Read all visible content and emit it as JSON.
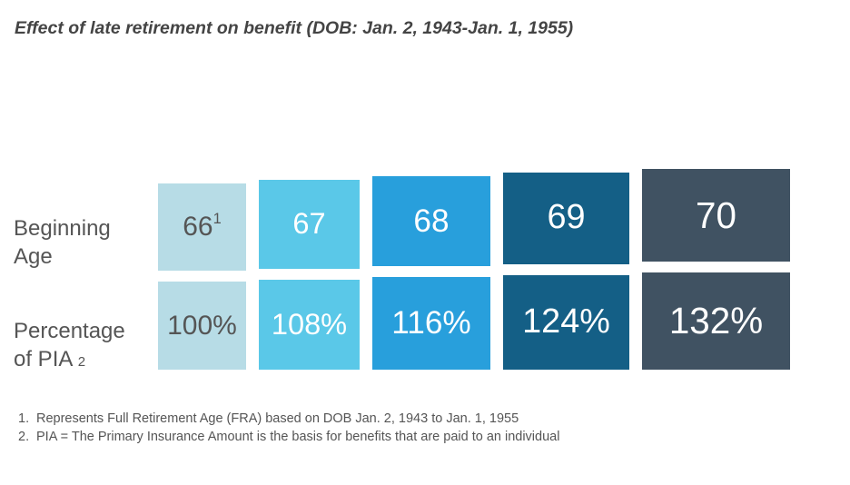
{
  "title": "Effect of late retirement on benefit (DOB: Jan. 2, 1943-Jan. 1, 1955)",
  "row_labels": {
    "age_line1": "Beginning",
    "age_line2": "Age",
    "pia_line1": "Percentage",
    "pia_line2": "of PIA",
    "pia_footnote": "2"
  },
  "footnotes": [
    {
      "num": "1.",
      "text": "Represents Full Retirement Age (FRA) based on DOB Jan. 2, 1943 to Jan. 1, 1955"
    },
    {
      "num": "2.",
      "text": "PIA = The Primary Insurance Amount is the basis for benefits that are paid to an individual"
    }
  ],
  "chart_data": {
    "type": "bar",
    "title": "Effect of late retirement on benefit (DOB: Jan. 2, 1943-Jan. 1, 1955)",
    "categories": [
      "66",
      "67",
      "68",
      "69",
      "70"
    ],
    "category_footnotes": [
      "1",
      "",
      "",
      "",
      ""
    ],
    "age_labels": [
      "66",
      "67",
      "68",
      "69",
      "70"
    ],
    "pia_labels": [
      "100%",
      "108%",
      "116%",
      "124%",
      "132%"
    ],
    "series": [
      {
        "name": "Percentage of PIA",
        "values": [
          100,
          108,
          116,
          124,
          132
        ]
      }
    ],
    "colors": {
      "age_boxes": [
        "#b7dce6",
        "#5ac8e8",
        "#289fdc",
        "#145f86",
        "#405262"
      ],
      "pia_boxes": [
        "#b7dce6",
        "#5ac8e8",
        "#289fdc",
        "#145f86",
        "#405262"
      ],
      "text": [
        "#555555",
        "#ffffff",
        "#ffffff",
        "#ffffff",
        "#ffffff"
      ]
    }
  }
}
